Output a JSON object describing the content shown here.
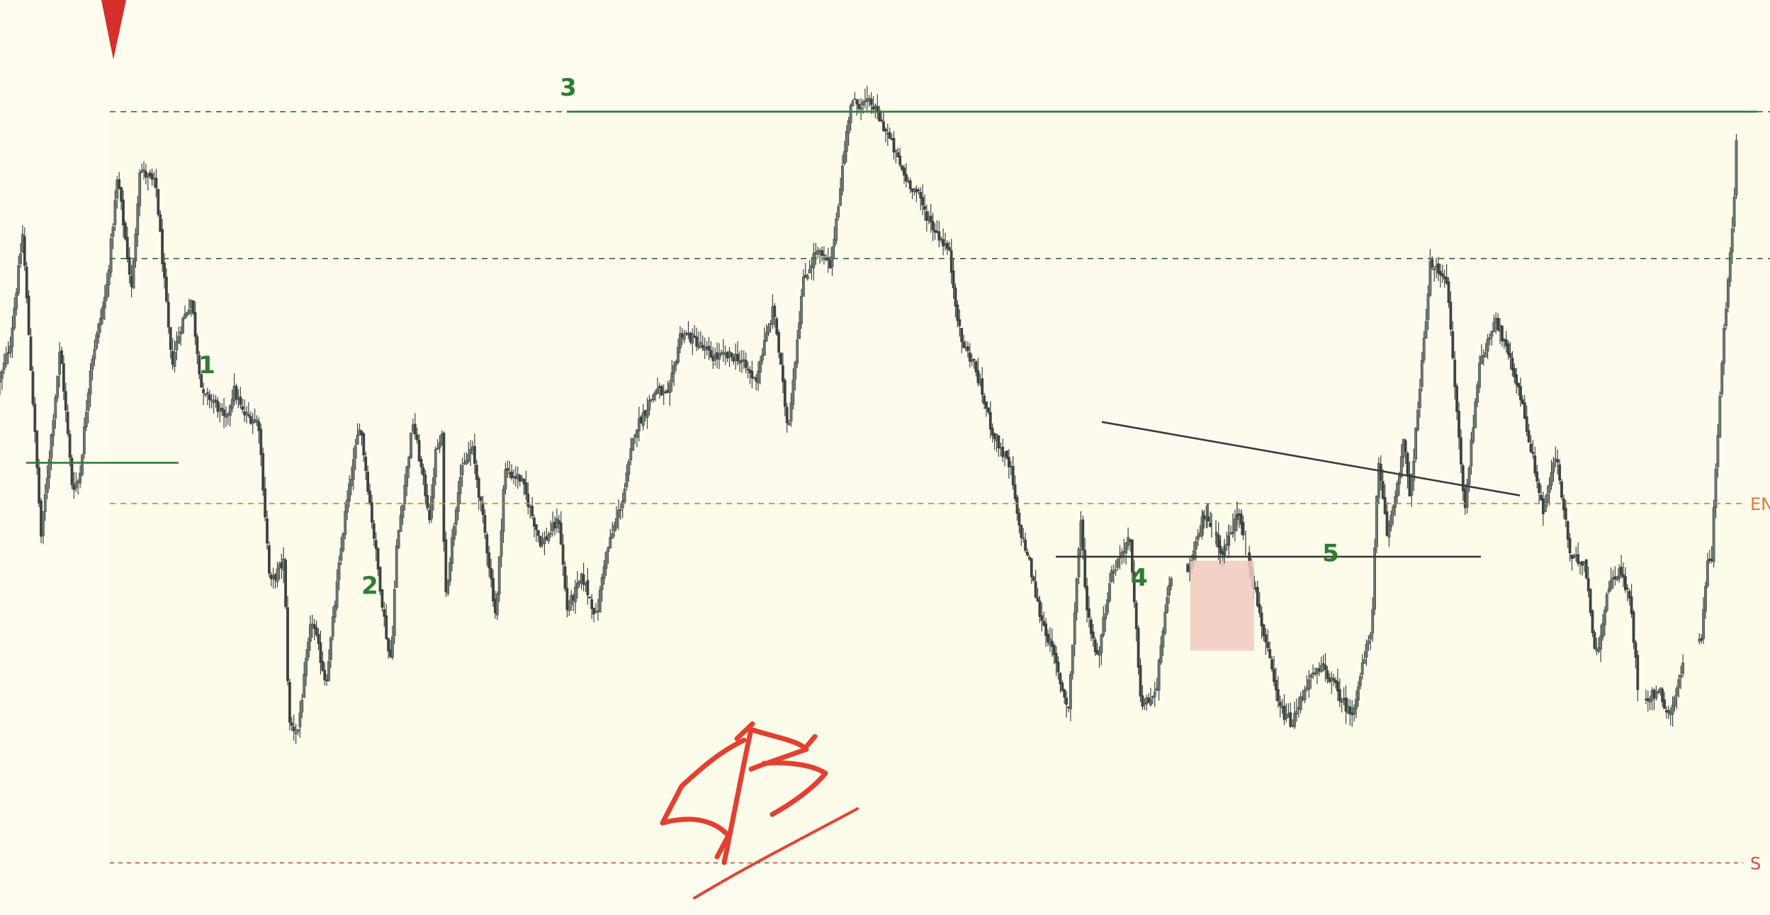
{
  "chart_data": {
    "type": "candlestick",
    "title": "",
    "xlabel": "",
    "ylabel": "",
    "ylim": [
      0,
      100
    ],
    "grid": false,
    "legend": "none",
    "colors": {
      "background": "#fffdf0",
      "zone_upper": "#fdfbea",
      "zone_lower": "#fffaee",
      "candle": "#3c4440",
      "wave_label": "#2e7d32",
      "green_line": "#2e7d32",
      "green_dashed": "#2e6b35",
      "entry_dashed": "#e07b2a",
      "stop_dashed": "#d24a3a",
      "trendline": "#3a3a3a",
      "highlight_box": "#f2c9c0",
      "signature": "#e03020",
      "marker": "#d62f2a"
    },
    "close_path": [
      [
        0,
        62
      ],
      [
        15,
        67
      ],
      [
        32,
        80
      ],
      [
        58,
        43
      ],
      [
        85,
        66
      ],
      [
        102,
        49
      ],
      [
        112,
        50
      ],
      [
        128,
        64
      ],
      [
        150,
        73
      ],
      [
        166,
        87
      ],
      [
        186,
        73
      ],
      [
        197,
        88
      ],
      [
        220,
        86
      ],
      [
        242,
        64
      ],
      [
        256,
        69
      ],
      [
        270,
        72
      ],
      [
        286,
        60
      ],
      [
        296,
        60
      ],
      [
        306,
        59
      ],
      [
        318,
        57
      ],
      [
        330,
        61
      ],
      [
        343,
        58
      ],
      [
        365,
        57
      ],
      [
        381,
        37
      ],
      [
        401,
        40
      ],
      [
        408,
        20
      ],
      [
        420,
        19
      ],
      [
        440,
        33
      ],
      [
        460,
        25
      ],
      [
        486,
        45
      ],
      [
        508,
        57
      ],
      [
        532,
        40
      ],
      [
        548,
        29
      ],
      [
        552,
        28
      ],
      [
        560,
        42
      ],
      [
        583,
        57
      ],
      [
        607,
        45
      ],
      [
        614,
        53
      ],
      [
        624,
        55
      ],
      [
        628,
        35
      ],
      [
        648,
        50
      ],
      [
        666,
        54
      ],
      [
        685,
        43
      ],
      [
        700,
        33
      ],
      [
        712,
        51
      ],
      [
        735,
        50
      ],
      [
        764,
        42
      ],
      [
        789,
        45
      ],
      [
        800,
        34
      ],
      [
        822,
        38
      ],
      [
        842,
        33
      ],
      [
        853,
        40
      ],
      [
        880,
        48
      ],
      [
        896,
        56
      ],
      [
        926,
        61
      ],
      [
        943,
        60
      ],
      [
        961,
        68
      ],
      [
        981,
        67
      ],
      [
        1004,
        65
      ],
      [
        1041,
        65
      ],
      [
        1066,
        62
      ],
      [
        1080,
        67
      ],
      [
        1092,
        71
      ],
      [
        1112,
        56
      ],
      [
        1133,
        74
      ],
      [
        1152,
        78
      ],
      [
        1172,
        76
      ],
      [
        1200,
        96
      ],
      [
        1230,
        96
      ],
      [
        1254,
        92
      ],
      [
        1277,
        87
      ],
      [
        1295,
        85
      ],
      [
        1304,
        83
      ],
      [
        1316,
        81
      ],
      [
        1339,
        78
      ],
      [
        1356,
        67
      ],
      [
        1375,
        64
      ],
      [
        1400,
        56
      ],
      [
        1427,
        51
      ],
      [
        1436,
        45
      ],
      [
        1452,
        40
      ],
      [
        1466,
        34
      ],
      [
        1485,
        29
      ],
      [
        1500,
        24
      ],
      [
        1508,
        22
      ],
      [
        1525,
        45
      ],
      [
        1534,
        34
      ],
      [
        1549,
        28
      ],
      [
        1567,
        38
      ],
      [
        1594,
        43
      ],
      [
        1611,
        22
      ],
      [
        1633,
        24
      ],
      [
        1638,
        30
      ],
      [
        1657,
        40
      ],
      [
        1680,
        39
      ],
      [
        1700,
        46
      ],
      [
        1726,
        41
      ],
      [
        1749,
        46
      ],
      [
        1772,
        36
      ],
      [
        1805,
        22
      ],
      [
        1824,
        20
      ],
      [
        1844,
        25
      ],
      [
        1868,
        27
      ],
      [
        1907,
        21
      ],
      [
        1936,
        32
      ],
      [
        1945,
        52
      ],
      [
        1958,
        43
      ],
      [
        1971,
        49
      ],
      [
        1982,
        55
      ],
      [
        1989,
        47
      ],
      [
        2009,
        66
      ],
      [
        2018,
        76
      ],
      [
        2041,
        75
      ],
      [
        2067,
        46
      ],
      [
        2086,
        63
      ],
      [
        2110,
        70
      ],
      [
        2144,
        61
      ],
      [
        2178,
        46
      ],
      [
        2196,
        53
      ],
      [
        2217,
        40
      ],
      [
        2237,
        40
      ],
      [
        2252,
        28
      ],
      [
        2271,
        37
      ],
      [
        2285,
        39
      ],
      [
        2301,
        35
      ],
      [
        2313,
        23
      ],
      [
        2342,
        24
      ],
      [
        2356,
        21
      ],
      [
        2378,
        28
      ],
      [
        2402,
        31
      ],
      [
        2409,
        40
      ],
      [
        2415,
        39
      ],
      [
        2419,
        48
      ],
      [
        2433,
        68
      ],
      [
        2448,
        85
      ],
      [
        2451,
        92
      ],
      [
        2451,
        98
      ]
    ],
    "annotations": {
      "wave_labels": [
        {
          "text": "1",
          "x": 292,
          "y": 64
        },
        {
          "text": "2",
          "x": 522,
          "y": 37
        },
        {
          "text": "3",
          "x": 802,
          "y": 98
        },
        {
          "text": "4",
          "x": 1608,
          "y": 38
        },
        {
          "text": "5",
          "x": 1878,
          "y": 41
        }
      ],
      "levels": [
        {
          "name": "target",
          "value": 95,
          "style": "dashed-green"
        },
        {
          "name": "mid",
          "value": 77,
          "style": "dashed-green"
        },
        {
          "name": "entry",
          "value": 47,
          "style": "dashed-orange",
          "label": "EN"
        },
        {
          "name": "stop",
          "value": 3,
          "style": "dashed-red",
          "label": "S"
        }
      ],
      "breakout_line_value": 95,
      "prior_high_line": {
        "x1": 37,
        "x2": 252,
        "value": 52
      },
      "support_line": {
        "x1": 1490,
        "x2": 2090,
        "value": 40.5
      },
      "trendline": {
        "x1": 1555,
        "y1": 57,
        "x2": 2145,
        "y2": 48
      },
      "highlight_box": {
        "x1": 1680,
        "x2": 1770,
        "y1": 29,
        "y2": 40
      },
      "marker": "down-triangle"
    }
  }
}
